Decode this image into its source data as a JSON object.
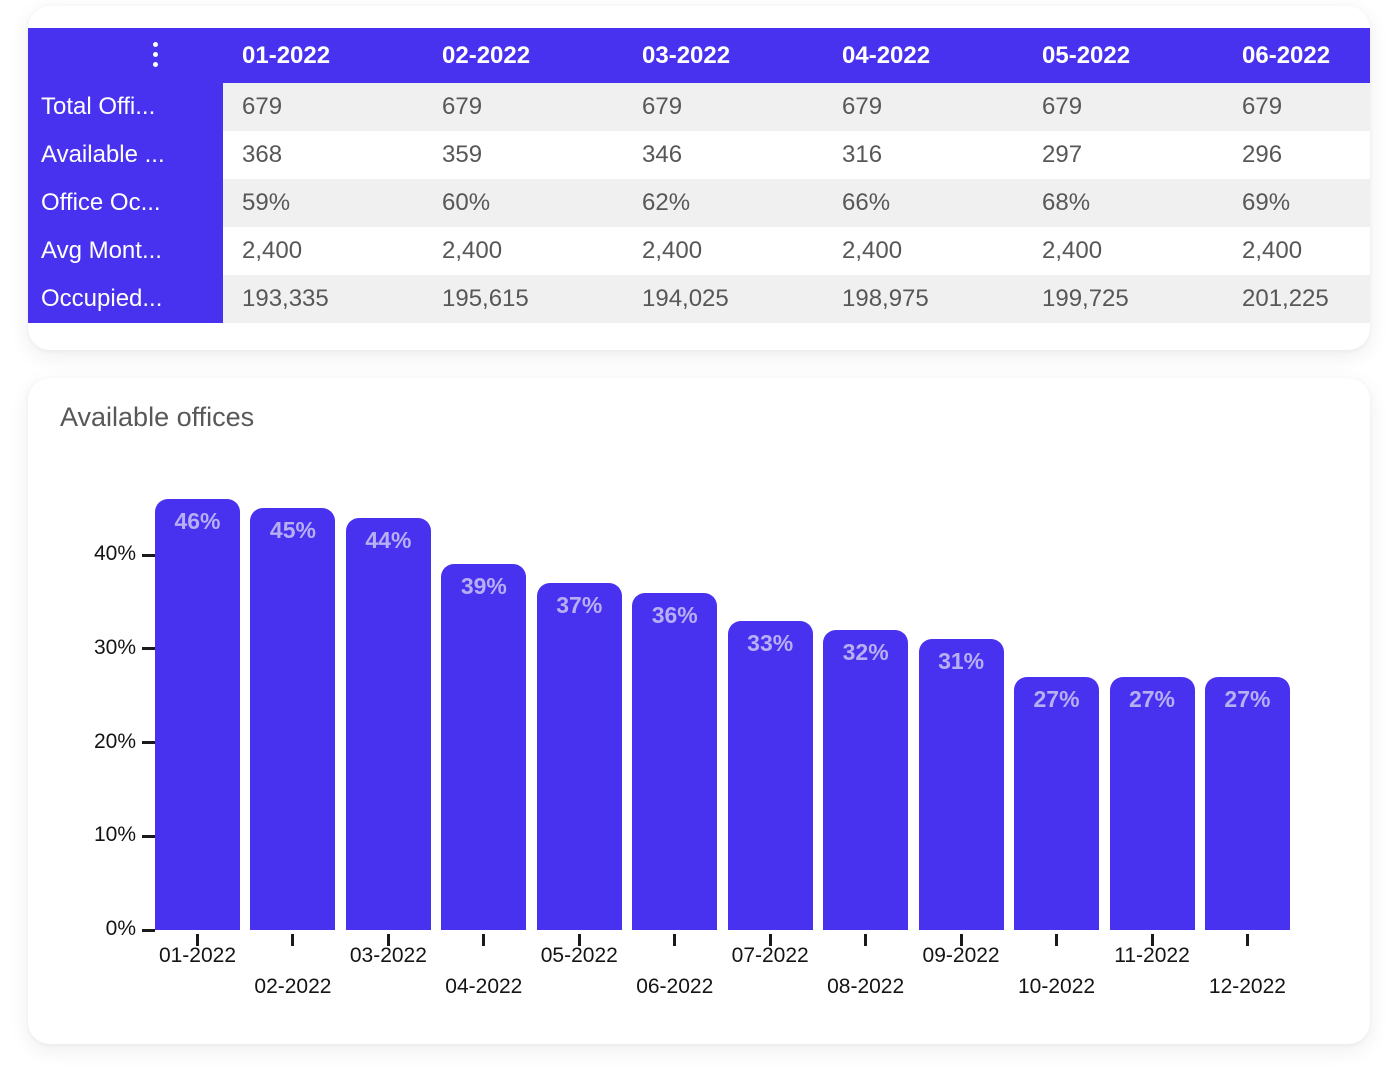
{
  "table": {
    "menu_icon": "kebab-vertical-icon",
    "columns": [
      "01-2022",
      "02-2022",
      "03-2022",
      "04-2022",
      "05-2022",
      "06-2022"
    ],
    "rows": [
      {
        "label": "Total Offi...",
        "values": [
          "679",
          "679",
          "679",
          "679",
          "679",
          "679"
        ]
      },
      {
        "label": "Available ...",
        "values": [
          "368",
          "359",
          "346",
          "316",
          "297",
          "296"
        ]
      },
      {
        "label": "Office Oc...",
        "values": [
          "59%",
          "60%",
          "62%",
          "66%",
          "68%",
          "69%"
        ]
      },
      {
        "label": "Avg Mont...",
        "values": [
          "2,400",
          "2,400",
          "2,400",
          "2,400",
          "2,400",
          "2,400"
        ]
      },
      {
        "label": "Occupied...",
        "values": [
          "193,335",
          "195,615",
          "194,025",
          "198,975",
          "199,725",
          "201,225"
        ]
      }
    ]
  },
  "chart": {
    "title": "Available offices"
  },
  "chart_data": {
    "type": "bar",
    "title": "Available offices",
    "categories": [
      "01-2022",
      "02-2022",
      "03-2022",
      "04-2022",
      "05-2022",
      "06-2022",
      "07-2022",
      "08-2022",
      "09-2022",
      "10-2022",
      "11-2022",
      "12-2022"
    ],
    "values": [
      46,
      45,
      44,
      39,
      37,
      36,
      33,
      32,
      31,
      27,
      27,
      27
    ],
    "value_labels": [
      "46%",
      "45%",
      "44%",
      "39%",
      "37%",
      "36%",
      "33%",
      "32%",
      "31%",
      "27%",
      "27%",
      "27%"
    ],
    "xlabel": "",
    "ylabel": "",
    "y_ticks": [
      "0%",
      "10%",
      "20%",
      "30%",
      "40%"
    ],
    "ylim": [
      0,
      48
    ],
    "grid": false,
    "legend": false,
    "x_labels_staggered": true
  },
  "colors": {
    "accent_purple": "#4832f0",
    "row_stripe_gray": "#f0f0f0",
    "cell_text": "#575757",
    "header_text": "#ffffff",
    "bar_label": "#b7aef3",
    "axis_text": "#141414",
    "title_text": "#585858",
    "card_bg": "#ffffff"
  }
}
